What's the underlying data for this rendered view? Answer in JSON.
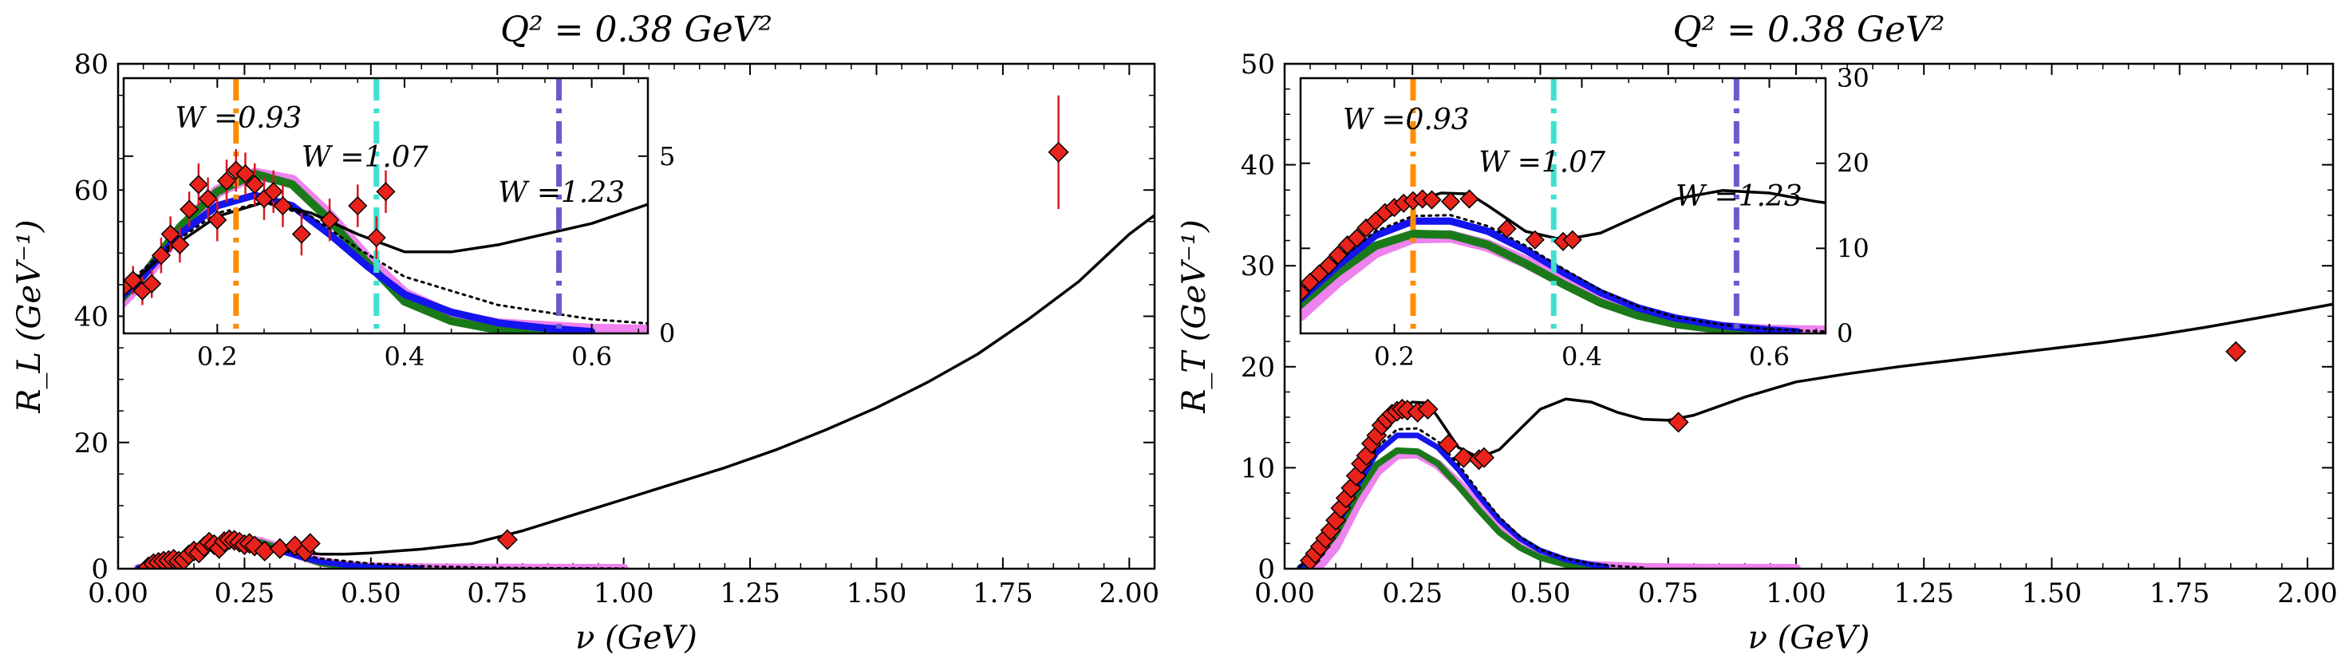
{
  "colors": {
    "data_fill": "#e8231b",
    "data_edge": "#000000",
    "errbar": "#d71920",
    "curve_black": "#000000",
    "curve_blue": "#1414ee",
    "curve_green": "#1a7a1a",
    "curve_violet": "#ee82ee",
    "line_orange": "#ff8c00",
    "line_turquoise": "#40e0d0",
    "line_slateblue": "#6a5acd"
  },
  "chart_data": [
    {
      "type": "scatter",
      "title": "Q² = 0.38 GeV²",
      "xlabel": "ν (GeV)",
      "ylabel": "R_L (GeV⁻¹)",
      "xlim": [
        0,
        2.05
      ],
      "ylim": [
        0,
        80
      ],
      "xticks": [
        0.0,
        0.25,
        0.5,
        0.75,
        1.0,
        1.25,
        1.5,
        1.75,
        2.0
      ],
      "xtick_labels": [
        "0.00",
        "0.25",
        "0.50",
        "0.75",
        "1.00",
        "1.25",
        "1.50",
        "1.75",
        "2.00"
      ],
      "yticks": [
        0,
        20,
        40,
        60,
        80
      ],
      "ytick_labels": [
        "0",
        "20",
        "40",
        "60",
        "80"
      ],
      "points": [
        {
          "x": 0.06,
          "y": 0.3,
          "e": 0.4
        },
        {
          "x": 0.07,
          "y": 0.8,
          "e": 0.4
        },
        {
          "x": 0.08,
          "y": 1.0,
          "e": 0.4
        },
        {
          "x": 0.09,
          "y": 1.2,
          "e": 0.4
        },
        {
          "x": 0.1,
          "y": 1.3,
          "e": 0.4
        },
        {
          "x": 0.11,
          "y": 1.5,
          "e": 0.4
        },
        {
          "x": 0.12,
          "y": 1.2,
          "e": 0.4
        },
        {
          "x": 0.13,
          "y": 1.4,
          "e": 0.4
        },
        {
          "x": 0.14,
          "y": 2.2,
          "e": 0.5
        },
        {
          "x": 0.15,
          "y": 2.8,
          "e": 0.5
        },
        {
          "x": 0.16,
          "y": 2.5,
          "e": 0.5
        },
        {
          "x": 0.17,
          "y": 3.5,
          "e": 0.5
        },
        {
          "x": 0.18,
          "y": 4.2,
          "e": 0.6
        },
        {
          "x": 0.19,
          "y": 3.8,
          "e": 0.6
        },
        {
          "x": 0.2,
          "y": 3.2,
          "e": 0.6
        },
        {
          "x": 0.21,
          "y": 4.3,
          "e": 0.6
        },
        {
          "x": 0.22,
          "y": 4.6,
          "e": 0.6
        },
        {
          "x": 0.23,
          "y": 4.5,
          "e": 0.6
        },
        {
          "x": 0.24,
          "y": 4.2,
          "e": 0.6
        },
        {
          "x": 0.25,
          "y": 3.8,
          "e": 0.6
        },
        {
          "x": 0.26,
          "y": 4.0,
          "e": 0.6
        },
        {
          "x": 0.27,
          "y": 3.6,
          "e": 0.6
        },
        {
          "x": 0.29,
          "y": 2.8,
          "e": 0.6
        },
        {
          "x": 0.32,
          "y": 3.2,
          "e": 0.6
        },
        {
          "x": 0.35,
          "y": 3.6,
          "e": 0.6
        },
        {
          "x": 0.37,
          "y": 2.7,
          "e": 0.6
        },
        {
          "x": 0.38,
          "y": 4.0,
          "e": 0.6
        },
        {
          "x": 0.77,
          "y": 4.6,
          "e": 0.8
        },
        {
          "x": 1.86,
          "y": 66,
          "e": 9
        }
      ],
      "curve_black": {
        "x": [
          0.04,
          0.1,
          0.15,
          0.2,
          0.25,
          0.3,
          0.35,
          0.4,
          0.45,
          0.5,
          0.6,
          0.7,
          0.8,
          0.9,
          1.0,
          1.1,
          1.2,
          1.3,
          1.4,
          1.5,
          1.6,
          1.7,
          1.8,
          1.9,
          2.0,
          2.05
        ],
        "y": [
          0.1,
          1.2,
          2.4,
          3.3,
          3.7,
          3.4,
          2.8,
          2.3,
          2.3,
          2.5,
          3.1,
          4.0,
          6.0,
          8.5,
          11,
          13.5,
          16,
          18.8,
          22,
          25.5,
          29.5,
          34,
          39.5,
          45.5,
          53,
          56
        ]
      },
      "curve_dotted": {
        "x": [
          0.04,
          0.1,
          0.15,
          0.2,
          0.25,
          0.3,
          0.35,
          0.4,
          0.5,
          0.6,
          0.7,
          0.8,
          0.9,
          1.0
        ],
        "y": [
          0.1,
          1.3,
          2.5,
          3.4,
          3.7,
          3.3,
          2.4,
          1.6,
          0.8,
          0.4,
          0.2,
          0.1,
          0.05,
          0.02
        ]
      },
      "curve_blue": {
        "x": [
          0.04,
          0.08,
          0.12,
          0.16,
          0.2,
          0.24,
          0.28,
          0.32,
          0.36,
          0.4,
          0.45,
          0.5,
          0.55,
          0.6
        ],
        "y": [
          0.1,
          0.6,
          1.6,
          2.8,
          3.6,
          3.9,
          3.6,
          2.8,
          1.9,
          1.1,
          0.6,
          0.3,
          0.15,
          0.05
        ]
      },
      "curve_green": {
        "x": [
          0.04,
          0.08,
          0.12,
          0.16,
          0.2,
          0.24,
          0.28,
          0.32,
          0.36,
          0.4,
          0.45,
          0.5,
          0.55,
          0.6
        ],
        "y": [
          0.1,
          0.5,
          1.6,
          3.0,
          4.0,
          4.5,
          4.2,
          3.2,
          2.0,
          0.9,
          0.35,
          0.1,
          0.03,
          0.0
        ]
      },
      "curve_violet": {
        "x": [
          0.04,
          0.08,
          0.12,
          0.16,
          0.2,
          0.24,
          0.28,
          0.32,
          0.36,
          0.4,
          0.45,
          0.5,
          0.6,
          0.7,
          0.8,
          1.0
        ],
        "y": [
          0.0,
          0.4,
          1.5,
          2.9,
          4.0,
          4.5,
          4.3,
          3.3,
          2.1,
          1.1,
          0.5,
          0.25,
          0.1,
          0.05,
          0.02,
          0.0
        ]
      },
      "inset": {
        "xlim": [
          0.1,
          0.66
        ],
        "ylim": [
          0,
          7.2
        ],
        "xticks": [
          0.2,
          0.4,
          0.6
        ],
        "xtick_labels": [
          "0.2",
          "0.4",
          "0.6"
        ],
        "yticks": [
          0,
          5
        ],
        "ytick_labels": [
          "0",
          "5"
        ],
        "vlines": [
          {
            "x": 0.22,
            "color": "line_orange",
            "label": "W =0.93",
            "label_x": 0.155,
            "label_y": 5.8
          },
          {
            "x": 0.37,
            "color": "line_turquoise",
            "label": "W =1.07",
            "label_x": 0.29,
            "label_y": 4.7
          },
          {
            "x": 0.565,
            "color": "line_slateblue",
            "label": "W =1.23",
            "label_x": 0.5,
            "label_y": 3.7
          }
        ]
      }
    },
    {
      "type": "scatter",
      "title": "Q² = 0.38 GeV²",
      "xlabel": "ν (GeV)",
      "ylabel": "R_T (GeV⁻¹)",
      "xlim": [
        0,
        2.05
      ],
      "ylim": [
        0,
        50
      ],
      "xticks": [
        0.0,
        0.25,
        0.5,
        0.75,
        1.0,
        1.25,
        1.5,
        1.75,
        2.0
      ],
      "xtick_labels": [
        "0.00",
        "0.25",
        "0.50",
        "0.75",
        "1.00",
        "1.25",
        "1.50",
        "1.75",
        "2.00"
      ],
      "yticks": [
        0,
        10,
        20,
        30,
        40,
        50
      ],
      "ytick_labels": [
        "0",
        "10",
        "20",
        "30",
        "40",
        "50"
      ],
      "points": [
        {
          "x": 0.05,
          "y": 0.8,
          "e": 0.2
        },
        {
          "x": 0.06,
          "y": 1.5,
          "e": 0.2
        },
        {
          "x": 0.07,
          "y": 2.2,
          "e": 0.2
        },
        {
          "x": 0.08,
          "y": 3.0,
          "e": 0.2
        },
        {
          "x": 0.09,
          "y": 3.8,
          "e": 0.2
        },
        {
          "x": 0.1,
          "y": 4.8,
          "e": 0.2
        },
        {
          "x": 0.11,
          "y": 6.0,
          "e": 0.2
        },
        {
          "x": 0.12,
          "y": 7.0,
          "e": 0.2
        },
        {
          "x": 0.13,
          "y": 8.0,
          "e": 0.2
        },
        {
          "x": 0.14,
          "y": 9.2,
          "e": 0.2
        },
        {
          "x": 0.15,
          "y": 10.4,
          "e": 0.2
        },
        {
          "x": 0.16,
          "y": 11.2,
          "e": 0.2
        },
        {
          "x": 0.17,
          "y": 12.4,
          "e": 0.2
        },
        {
          "x": 0.18,
          "y": 13.2,
          "e": 0.2
        },
        {
          "x": 0.19,
          "y": 14.2,
          "e": 0.2
        },
        {
          "x": 0.2,
          "y": 14.8,
          "e": 0.2
        },
        {
          "x": 0.21,
          "y": 15.3,
          "e": 0.2
        },
        {
          "x": 0.22,
          "y": 15.6,
          "e": 0.2
        },
        {
          "x": 0.23,
          "y": 15.8,
          "e": 0.2
        },
        {
          "x": 0.24,
          "y": 15.7,
          "e": 0.2
        },
        {
          "x": 0.26,
          "y": 15.5,
          "e": 0.2
        },
        {
          "x": 0.28,
          "y": 15.8,
          "e": 0.2
        },
        {
          "x": 0.32,
          "y": 12.3,
          "e": 0.2
        },
        {
          "x": 0.35,
          "y": 11.0,
          "e": 0.2
        },
        {
          "x": 0.38,
          "y": 10.8,
          "e": 0.2
        },
        {
          "x": 0.39,
          "y": 11.0,
          "e": 0.2
        },
        {
          "x": 0.77,
          "y": 14.5,
          "e": 0.3
        },
        {
          "x": 1.86,
          "y": 21.5,
          "e": 0.3
        }
      ],
      "curve_black": {
        "x": [
          0.03,
          0.06,
          0.1,
          0.14,
          0.18,
          0.22,
          0.25,
          0.28,
          0.3,
          0.34,
          0.38,
          0.42,
          0.46,
          0.5,
          0.55,
          0.6,
          0.65,
          0.7,
          0.75,
          0.8,
          0.9,
          1.0,
          1.1,
          1.2,
          1.3,
          1.4,
          1.5,
          1.6,
          1.7,
          1.8,
          1.9,
          2.05
        ],
        "y": [
          0.2,
          2.0,
          5.0,
          9.0,
          12.8,
          15.5,
          16.5,
          16.4,
          15.0,
          12.0,
          11.0,
          11.8,
          13.8,
          15.8,
          16.8,
          16.5,
          15.5,
          14.8,
          14.7,
          15.2,
          17.0,
          18.5,
          19.3,
          20.0,
          20.6,
          21.2,
          21.8,
          22.4,
          23.1,
          23.9,
          24.8,
          26.2
        ]
      },
      "curve_dotted": {
        "x": [
          0.03,
          0.06,
          0.1,
          0.14,
          0.18,
          0.22,
          0.26,
          0.3,
          0.34,
          0.38,
          0.42,
          0.46,
          0.5,
          0.55,
          0.6,
          0.65,
          0.7
        ],
        "y": [
          0.2,
          1.8,
          4.7,
          8.5,
          12.0,
          13.8,
          13.9,
          12.6,
          10.3,
          7.6,
          5.1,
          3.2,
          1.9,
          1.0,
          0.5,
          0.25,
          0.1
        ]
      },
      "curve_blue": {
        "x": [
          0.03,
          0.06,
          0.1,
          0.14,
          0.18,
          0.22,
          0.26,
          0.3,
          0.34,
          0.38,
          0.42,
          0.46,
          0.5,
          0.55,
          0.6,
          0.63
        ],
        "y": [
          0.1,
          1.2,
          4.0,
          8.0,
          11.5,
          13.2,
          13.2,
          12.0,
          9.8,
          7.2,
          4.8,
          3.0,
          1.8,
          0.9,
          0.4,
          0.2
        ]
      },
      "curve_green": {
        "x": [
          0.03,
          0.06,
          0.1,
          0.14,
          0.18,
          0.22,
          0.26,
          0.3,
          0.34,
          0.38,
          0.42,
          0.46,
          0.5,
          0.55,
          0.6
        ],
        "y": [
          0.1,
          0.9,
          3.4,
          7.2,
          10.3,
          11.7,
          11.6,
          10.4,
          8.2,
          5.8,
          3.6,
          2.1,
          1.1,
          0.4,
          0.1
        ]
      },
      "curve_violet": {
        "x": [
          0.04,
          0.07,
          0.1,
          0.14,
          0.18,
          0.22,
          0.26,
          0.3,
          0.34,
          0.38,
          0.42,
          0.46,
          0.5,
          0.55,
          0.6,
          0.7,
          0.8,
          1.0
        ],
        "y": [
          0.0,
          0.4,
          2.2,
          6.2,
          9.6,
          11.3,
          11.4,
          10.3,
          8.4,
          6.1,
          4.0,
          2.4,
          1.4,
          0.6,
          0.3,
          0.1,
          0.03,
          0.0
        ]
      },
      "inset": {
        "xlim": [
          0.1,
          0.66
        ],
        "ylim": [
          0,
          30
        ],
        "xticks": [
          0.2,
          0.4,
          0.6
        ],
        "xtick_labels": [
          "0.2",
          "0.4",
          "0.6"
        ],
        "yticks": [
          0,
          10,
          20,
          30
        ],
        "ytick_labels": [
          "0",
          "10",
          "20",
          "30"
        ],
        "vlines": [
          {
            "x": 0.22,
            "color": "line_orange",
            "label": "W =0.93",
            "label_x": 0.145,
            "label_y": 24
          },
          {
            "x": 0.37,
            "color": "line_turquoise",
            "label": "W =1.07",
            "label_x": 0.29,
            "label_y": 19
          },
          {
            "x": 0.565,
            "color": "line_slateblue",
            "label": "W =1.23",
            "label_x": 0.5,
            "label_y": 15
          }
        ]
      }
    }
  ]
}
